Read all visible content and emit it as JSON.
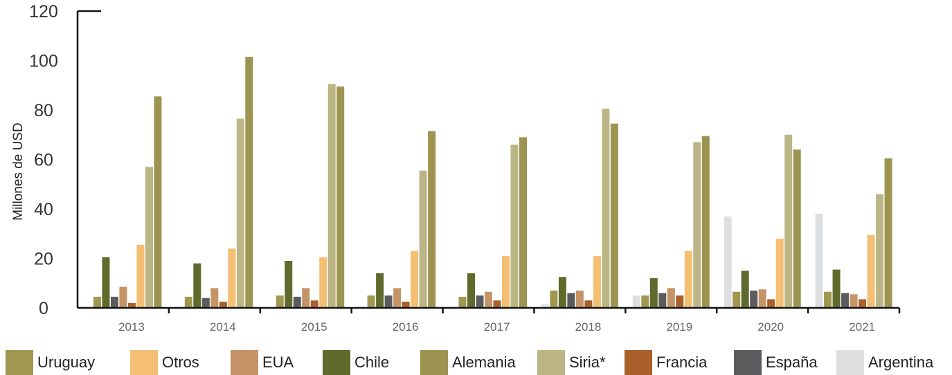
{
  "chart_data": {
    "type": "bar",
    "title": "",
    "xlabel": "",
    "ylabel": "Millones de USD",
    "ylim": [
      0,
      120
    ],
    "yticks": [
      0,
      20,
      40,
      60,
      80,
      100,
      120
    ],
    "categories": [
      "2013",
      "2014",
      "2015",
      "2016",
      "2017",
      "2018",
      "2019",
      "2020",
      "2021"
    ],
    "grid": false,
    "legend_position": "bottom",
    "series": [
      {
        "name": "Argentina",
        "color": "#dedfe0",
        "values": [
          0.5,
          0.4,
          0.4,
          0.4,
          0.4,
          1.5,
          5,
          37,
          38
        ]
      },
      {
        "name": "Uruguay",
        "color": "#a09750",
        "values": [
          4.5,
          4.5,
          5,
          5,
          4.5,
          7,
          5,
          6.5,
          6.5
        ]
      },
      {
        "name": "Chile",
        "color": "#5f6a2c",
        "values": [
          20.5,
          18,
          19,
          14,
          14,
          12.5,
          12,
          15,
          15.5
        ]
      },
      {
        "name": "España",
        "color": "#5c5c5e",
        "values": [
          4.5,
          4,
          4.5,
          5,
          5,
          6,
          6,
          7,
          6
        ]
      },
      {
        "name": "EUA",
        "color": "#c49366",
        "values": [
          8.5,
          8,
          8,
          8,
          6.5,
          7,
          8,
          7.5,
          5.5
        ]
      },
      {
        "name": "Francia",
        "color": "#a9602b",
        "values": [
          2,
          2.5,
          3,
          2.5,
          3,
          3,
          5,
          3.5,
          3.5
        ]
      },
      {
        "name": "Otros",
        "color": "#f4bf72",
        "values": [
          25.5,
          24,
          20.5,
          23,
          21,
          21,
          23,
          28,
          29.5
        ]
      },
      {
        "name": "Siria*",
        "color": "#bcb586",
        "values": [
          57,
          76.5,
          90.5,
          55.5,
          66,
          80.5,
          67,
          70,
          46
        ]
      },
      {
        "name": "Alemania",
        "color": "#9d9451",
        "values": [
          85.5,
          101.5,
          89.5,
          71.5,
          69,
          74.5,
          69.5,
          64,
          60.5
        ]
      }
    ],
    "legend": [
      {
        "name": "Uruguay",
        "color": "#a09750"
      },
      {
        "name": "Otros",
        "color": "#f4bf72"
      },
      {
        "name": "EUA",
        "color": "#c49366"
      },
      {
        "name": "Chile",
        "color": "#5f6a2c"
      },
      {
        "name": "Alemania",
        "color": "#9d9451"
      },
      {
        "name": "Siria*",
        "color": "#bcb586"
      },
      {
        "name": "Francia",
        "color": "#a9602b"
      },
      {
        "name": "España",
        "color": "#5c5c5e"
      },
      {
        "name": "Argentina",
        "color": "#dedfe0"
      }
    ]
  }
}
